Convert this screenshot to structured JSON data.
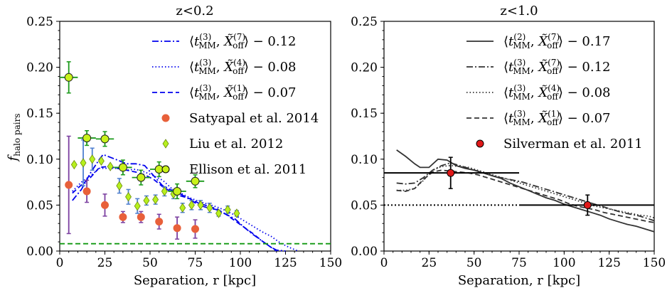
{
  "chart_data": [
    {
      "type": "line",
      "title": "z<0.2",
      "xlabel": "Separation, r [kpc]",
      "ylabel": "f_halo pairs",
      "xlim": [
        0,
        150
      ],
      "ylim": [
        0,
        0.25
      ],
      "xticks": [
        "0",
        "25",
        "50",
        "75",
        "100",
        "125",
        "150"
      ],
      "yticks": [
        "0.00",
        "0.05",
        "0.10",
        "0.15",
        "0.20",
        "0.25"
      ],
      "legend_position": "top-right",
      "series": [
        {
          "name": "⟨t_MM^(3), X̃_off^(7)⟩ − 0.12",
          "style": "dashdot",
          "color": "#0000ee",
          "x": [
            7,
            12,
            17,
            22,
            24,
            28,
            32,
            37,
            42,
            47,
            52,
            57,
            62,
            67,
            72,
            77,
            82,
            87,
            92,
            97,
            102,
            107,
            112,
            117,
            120,
            125
          ],
          "y": [
            0.055,
            0.067,
            0.085,
            0.1,
            0.105,
            0.102,
            0.099,
            0.095,
            0.095,
            0.093,
            0.082,
            0.071,
            0.066,
            0.062,
            0.056,
            0.05,
            0.047,
            0.045,
            0.04,
            0.035,
            0.026,
            0.018,
            0.011,
            0.004,
            0.001,
            0.0
          ]
        },
        {
          "name": "⟨t_MM^(3), X̃_off^(4)⟩ − 0.08",
          "style": "dotted",
          "color": "#0000ee",
          "x": [
            7,
            12,
            17,
            22,
            27,
            32,
            37,
            42,
            47,
            52,
            57,
            62,
            67,
            72,
            77,
            82,
            87,
            92,
            97,
            102,
            107,
            112,
            117,
            122,
            127,
            132
          ],
          "y": [
            0.065,
            0.075,
            0.082,
            0.09,
            0.09,
            0.09,
            0.088,
            0.089,
            0.086,
            0.082,
            0.077,
            0.068,
            0.063,
            0.058,
            0.054,
            0.051,
            0.048,
            0.044,
            0.039,
            0.033,
            0.027,
            0.021,
            0.016,
            0.009,
            0.004,
            0.0
          ]
        },
        {
          "name": "⟨t_MM^(3), X̃_off^(1)⟩ − 0.07",
          "style": "dashed",
          "color": "#0000ee",
          "x": [
            7,
            12,
            17,
            22,
            27,
            32,
            37,
            42,
            47,
            52,
            57,
            62,
            67,
            72,
            77,
            82,
            87,
            92,
            97,
            102,
            107,
            112,
            117,
            120
          ],
          "y": [
            0.063,
            0.072,
            0.08,
            0.091,
            0.092,
            0.09,
            0.088,
            0.086,
            0.083,
            0.078,
            0.07,
            0.064,
            0.06,
            0.057,
            0.052,
            0.049,
            0.046,
            0.04,
            0.033,
            0.026,
            0.019,
            0.011,
            0.004,
            0.0
          ]
        },
        {
          "name": "Satyapal et al. 2014",
          "style": "points",
          "color": "#e8603a",
          "errcolor": "#7b3fa0",
          "x": [
            5,
            15,
            25,
            35,
            45,
            55,
            65,
            75
          ],
          "y": [
            0.072,
            0.065,
            0.05,
            0.037,
            0.037,
            0.032,
            0.025,
            0.024
          ],
          "err": [
            0.053,
            0.012,
            0.012,
            0.006,
            0.006,
            0.008,
            0.012,
            0.01
          ]
        },
        {
          "name": "Liu et al. 2012",
          "style": "points",
          "color": "#b7f01e",
          "errcolor": "#4e7fd0",
          "x": [
            8,
            13,
            18,
            23,
            28,
            33,
            38,
            43,
            48,
            53,
            58,
            63,
            68,
            73,
            78,
            83,
            88,
            93,
            98
          ],
          "y": [
            0.094,
            0.096,
            0.1,
            0.098,
            0.092,
            0.071,
            0.059,
            0.049,
            0.055,
            0.056,
            0.065,
            0.062,
            0.047,
            0.05,
            0.05,
            0.047,
            0.041,
            0.045,
            0.041
          ],
          "err": [
            0.0,
            0.025,
            0.012,
            0.0,
            0.0,
            0.008,
            0.008,
            0.008,
            0.005,
            0.005,
            0.005,
            0.005,
            0.005,
            0.005,
            0.005,
            0.005,
            0.003,
            0.004,
            0.003
          ]
        },
        {
          "name": "Ellison et al. 2011",
          "style": "points",
          "color": "#c8f21a",
          "errcolor": "#1a9a1a",
          "x": [
            5,
            15,
            25,
            35,
            45,
            55,
            65,
            75
          ],
          "y": [
            0.189,
            0.123,
            0.122,
            0.091,
            0.08,
            0.089,
            0.065,
            0.076
          ],
          "err": [
            0.017,
            0.008,
            0.008,
            0.008,
            0.008,
            0.008,
            0.008,
            0.007
          ],
          "xerr": 5
        },
        {
          "name": "",
          "style": "hline",
          "color": "#119911",
          "y": 0.008
        }
      ]
    },
    {
      "type": "line",
      "title": "z<1.0",
      "xlabel": "Separation, r [kpc]",
      "ylabel": "",
      "xlim": [
        0,
        150
      ],
      "ylim": [
        0,
        0.25
      ],
      "xticks": [
        "0",
        "25",
        "50",
        "75",
        "100",
        "125",
        "150"
      ],
      "yticks": [
        "0.00",
        "0.05",
        "0.10",
        "0.15",
        "0.20",
        "0.25"
      ],
      "legend_position": "top-right",
      "series": [
        {
          "name": "⟨t_MM^(2), X̃_off^(7)⟩ − 0.17",
          "style": "solid",
          "color": "#333333",
          "x": [
            7,
            12,
            17,
            20,
            25,
            30,
            35,
            40,
            45,
            50,
            55,
            60,
            65,
            70,
            75,
            80,
            85,
            90,
            95,
            100,
            105,
            110,
            115,
            120,
            125,
            130,
            135,
            140,
            145,
            150
          ],
          "y": [
            0.11,
            0.103,
            0.095,
            0.091,
            0.091,
            0.1,
            0.099,
            0.093,
            0.09,
            0.088,
            0.085,
            0.082,
            0.079,
            0.074,
            0.07,
            0.066,
            0.062,
            0.058,
            0.055,
            0.051,
            0.048,
            0.045,
            0.042,
            0.039,
            0.035,
            0.032,
            0.029,
            0.027,
            0.024,
            0.021
          ]
        },
        {
          "name": "⟨t_MM^(3), X̃_off^(7)⟩ − 0.12",
          "style": "dashdot",
          "color": "#333333",
          "x": [
            7,
            12,
            17,
            22,
            27,
            32,
            37,
            42,
            47,
            52,
            57,
            62,
            67,
            72,
            77,
            82,
            87,
            92,
            97,
            102,
            107,
            112,
            117,
            122,
            127,
            132,
            137,
            142,
            147,
            150
          ],
          "y": [
            0.074,
            0.073,
            0.074,
            0.08,
            0.088,
            0.093,
            0.096,
            0.093,
            0.09,
            0.087,
            0.084,
            0.081,
            0.079,
            0.077,
            0.075,
            0.072,
            0.069,
            0.066,
            0.063,
            0.06,
            0.057,
            0.054,
            0.051,
            0.048,
            0.045,
            0.042,
            0.04,
            0.038,
            0.035,
            0.033
          ]
        },
        {
          "name": "⟨t_MM^(3), X̃_off^(4)⟩ − 0.08",
          "style": "dotted",
          "color": "#333333",
          "x": [
            7,
            12,
            17,
            22,
            27,
            32,
            37,
            42,
            47,
            52,
            57,
            62,
            67,
            72,
            77,
            82,
            87,
            92,
            97,
            102,
            107,
            112,
            117,
            122,
            127,
            132,
            137,
            142,
            147,
            150
          ],
          "y": [
            0.066,
            0.066,
            0.068,
            0.077,
            0.088,
            0.092,
            0.093,
            0.092,
            0.091,
            0.088,
            0.085,
            0.082,
            0.079,
            0.076,
            0.073,
            0.07,
            0.067,
            0.064,
            0.061,
            0.058,
            0.055,
            0.052,
            0.049,
            0.047,
            0.045,
            0.043,
            0.041,
            0.039,
            0.038,
            0.036
          ]
        },
        {
          "name": "⟨t_MM^(3), X̃_off^(1)⟩ − 0.07",
          "style": "dashed",
          "color": "#333333",
          "x": [
            7,
            12,
            17,
            22,
            27,
            32,
            37,
            42,
            47,
            52,
            57,
            62,
            67,
            72,
            77,
            82,
            87,
            92,
            97,
            102,
            107,
            112,
            117,
            122,
            127,
            132,
            137,
            142,
            147,
            150
          ],
          "y": [
            0.066,
            0.065,
            0.068,
            0.078,
            0.086,
            0.088,
            0.087,
            0.086,
            0.085,
            0.083,
            0.08,
            0.077,
            0.074,
            0.071,
            0.068,
            0.065,
            0.062,
            0.059,
            0.056,
            0.052,
            0.049,
            0.047,
            0.045,
            0.042,
            0.04,
            0.038,
            0.036,
            0.034,
            0.032,
            0.031
          ]
        },
        {
          "name": "Silverman et al. 2011",
          "style": "points",
          "color": "#e01818",
          "errcolor": "#000000",
          "x": [
            37,
            113
          ],
          "y": [
            0.085,
            0.05
          ],
          "err": [
            0.017,
            0.011
          ],
          "xerr_lo": [
            37,
            38
          ],
          "xerr_hi": [
            38,
            37
          ]
        },
        {
          "name": "",
          "style": "hline-dotted",
          "color": "#000000",
          "y": 0.05,
          "xmax": 75
        }
      ]
    }
  ]
}
